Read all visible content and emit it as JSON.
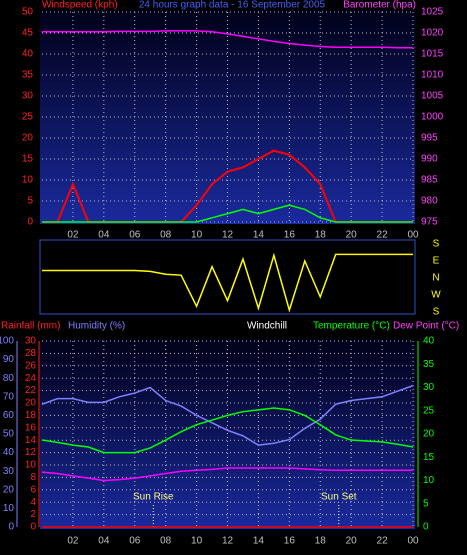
{
  "chart_data": [
    {
      "type": "line",
      "title": "24 hours graph data - 16 September 2005",
      "xlim": [
        0,
        24
      ],
      "xticks": [
        {
          "value": 2,
          "label": "02"
        },
        {
          "value": 4,
          "label": "04"
        },
        {
          "value": 6,
          "label": "06"
        },
        {
          "value": 8,
          "label": "08"
        },
        10,
        12,
        14,
        16,
        18,
        20,
        22,
        {
          "value": 24,
          "label": "00"
        }
      ],
      "x": [
        0,
        1,
        2,
        3,
        4,
        5,
        6,
        7,
        8,
        9,
        10,
        11,
        12,
        13,
        14,
        15,
        16,
        17,
        18,
        19,
        20,
        21,
        22,
        23,
        24
      ],
      "ylim": [
        0,
        50
      ],
      "yticks": [
        0,
        5,
        10,
        15,
        20,
        25,
        30,
        35,
        40,
        45,
        50
      ],
      "y2lim": [
        975,
        1025
      ],
      "y2ticks": [
        975,
        980,
        985,
        990,
        995,
        1000,
        1005,
        1010,
        1015,
        1020,
        1025
      ],
      "grid": true,
      "series": [
        {
          "name": "Windspeed (kph)",
          "color": "#ff0000",
          "values": [
            0,
            0,
            9,
            0,
            0,
            0,
            0,
            0,
            0,
            0,
            4,
            9,
            12,
            13,
            15,
            17,
            16,
            13,
            9,
            0,
            0,
            0,
            0,
            0,
            0
          ]
        },
        {
          "color": "#00ff00",
          "values": [
            0,
            0,
            0,
            0,
            0,
            0,
            0,
            0,
            0,
            0,
            0,
            1,
            2,
            3,
            2,
            3,
            4,
            3,
            1,
            0,
            0,
            0,
            0,
            0,
            0
          ]
        },
        {
          "name": "Barometer (hpa)",
          "color": "#ff00ff",
          "axis": "y2",
          "values": [
            1020.3,
            1020.3,
            1020.3,
            1020.3,
            1020.3,
            1020.4,
            1020.4,
            1020.4,
            1020.5,
            1020.5,
            1020.5,
            1020.3,
            1019.8,
            1019.2,
            1018.6,
            1018,
            1017.5,
            1017.1,
            1016.8,
            1016.6,
            1016.6,
            1016.6,
            1016.6,
            1016.5,
            1016.5
          ]
        }
      ]
    },
    {
      "type": "line",
      "xlim": [
        0,
        24
      ],
      "x": [
        0,
        1,
        2,
        3,
        4,
        5,
        6,
        7,
        8,
        9,
        10,
        11,
        12,
        13,
        14,
        15,
        16,
        17,
        18,
        19,
        20,
        21,
        22,
        23,
        24
      ],
      "ylim": [
        -180,
        180
      ],
      "yticks": [
        {
          "value": 180,
          "label": "S"
        },
        {
          "value": 90,
          "label": "E"
        },
        {
          "value": 0,
          "label": "N"
        },
        {
          "value": -90,
          "label": "W"
        },
        {
          "value": -180,
          "label": "S"
        }
      ],
      "series": [
        {
          "color": "#ffff00",
          "values": [
            40,
            40,
            40,
            40,
            40,
            40,
            40,
            35,
            20,
            15,
            -150,
            60,
            -120,
            100,
            -160,
            120,
            -170,
            90,
            -100,
            125,
            125,
            125,
            125,
            125,
            125
          ]
        }
      ]
    },
    {
      "type": "line",
      "xlim": [
        0,
        24
      ],
      "xticks": [
        {
          "value": 2,
          "label": "02"
        },
        {
          "value": 4,
          "label": "04"
        },
        {
          "value": 6,
          "label": "06"
        },
        {
          "value": 8,
          "label": "08"
        },
        10,
        12,
        14,
        16,
        18,
        20,
        22,
        {
          "value": 24,
          "label": "00"
        }
      ],
      "x": [
        0,
        1,
        2,
        3,
        4,
        5,
        6,
        7,
        8,
        9,
        10,
        11,
        12,
        13,
        14,
        15,
        16,
        17,
        18,
        19,
        20,
        21,
        22,
        23,
        24
      ],
      "ylim": [
        0,
        40
      ],
      "yticks": [
        0,
        5,
        10,
        15,
        20,
        25,
        30,
        35,
        40
      ],
      "humidity_lim": [
        0,
        100
      ],
      "humidity_ticks": [
        0,
        10,
        20,
        30,
        40,
        50,
        60,
        70,
        80,
        90,
        100
      ],
      "rain_lim": [
        0,
        30
      ],
      "rain_ticks": [
        0,
        2,
        4,
        6,
        8,
        10,
        12,
        14,
        16,
        18,
        20,
        22,
        24,
        26,
        28,
        30
      ],
      "grid": true,
      "windchill_label": "Windchill",
      "annotations": [
        {
          "text": "Sun Rise",
          "x": 7.2
        },
        {
          "text": "Sun Set",
          "x": 19.2
        }
      ],
      "series": [
        {
          "name": "Rainfall (mm)",
          "color": "#ff0000",
          "axis": "rain",
          "values": [
            0,
            0,
            0,
            0,
            0,
            0,
            0,
            0,
            0,
            0,
            0,
            0,
            0,
            0,
            0,
            0,
            0,
            0,
            0,
            0,
            0,
            0,
            0,
            0,
            0
          ]
        },
        {
          "name": "Humidity (%)",
          "color": "#8080ff",
          "axis": "humidity",
          "values": [
            66,
            69,
            69,
            67,
            67,
            70,
            72,
            75,
            68,
            65,
            60,
            56,
            52,
            49,
            44,
            45,
            47,
            53,
            58,
            66,
            68,
            69,
            70,
            73,
            76
          ]
        },
        {
          "name": "Temperature (°C)",
          "color": "#00ff00",
          "values": [
            18.7,
            18.2,
            17.6,
            17.2,
            16,
            16,
            16,
            17,
            18.7,
            20.5,
            22,
            23,
            24,
            24.8,
            25.2,
            25.6,
            25.2,
            24,
            22,
            19.8,
            18.7,
            18.5,
            18.3,
            17.8,
            17.2
          ]
        },
        {
          "name": "Dew Point (°C)",
          "color": "#ff00ff",
          "values": [
            11.8,
            11.5,
            11,
            10.5,
            10,
            10.2,
            10.5,
            11,
            11.5,
            12,
            12.2,
            12.4,
            12.7,
            12.7,
            12.7,
            12.7,
            12.7,
            12.5,
            12.3,
            12.2,
            12.2,
            12.2,
            12.2,
            12.2,
            12.2
          ]
        }
      ]
    }
  ]
}
